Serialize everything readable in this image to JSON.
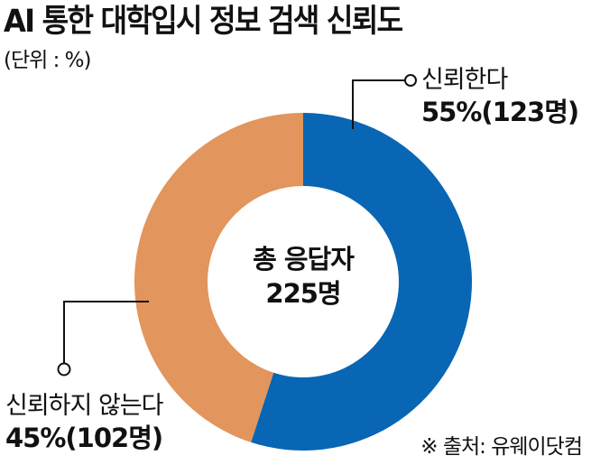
{
  "header": {
    "title": "AI 통한 대학입시 정보 검색 신뢰도",
    "unit": "(단위 : %)"
  },
  "center_label": {
    "line1": "총 응답자",
    "line2": "225명"
  },
  "labels": {
    "trust": {
      "name": "신뢰한다",
      "value": "55%(123명)"
    },
    "distrust": {
      "name": "신뢰하지 않는다",
      "value": "45%(102명)"
    }
  },
  "source": "※ 출처: 유웨이닷컴",
  "colors": {
    "trust": "#0866b4",
    "distrust": "#e2955c"
  },
  "chart_data": {
    "type": "pie",
    "subtype": "donut",
    "title": "AI 통한 대학입시 정보 검색 신뢰도",
    "unit": "%",
    "categories": [
      "신뢰한다",
      "신뢰하지 않는다"
    ],
    "values": [
      55,
      45
    ],
    "counts": [
      123,
      102
    ],
    "total": 225,
    "center_text": "총 응답자 225명",
    "colors": [
      "#0866b4",
      "#e2955c"
    ],
    "source": "유웨이닷컴"
  }
}
